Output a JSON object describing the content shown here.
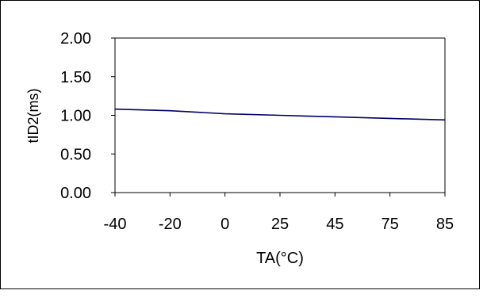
{
  "chart_data": {
    "type": "line",
    "categories": [
      "-40",
      "-20",
      "0",
      "25",
      "45",
      "75",
      "85"
    ],
    "series": [
      {
        "values": [
          1.08,
          1.06,
          1.02,
          1.0,
          0.98,
          0.96,
          0.94
        ]
      }
    ],
    "xlabel": "TA(°C)",
    "ylabel": "tID2(ms)",
    "ylim": [
      0,
      2
    ],
    "yticks": [
      "0.00",
      "0.50",
      "1.00",
      "1.50",
      "2.00"
    ],
    "grid": false,
    "legend": "none",
    "colors": {
      "line": "#000066",
      "axis": "#000000",
      "border": "#000000",
      "background": "#ffffff"
    }
  }
}
